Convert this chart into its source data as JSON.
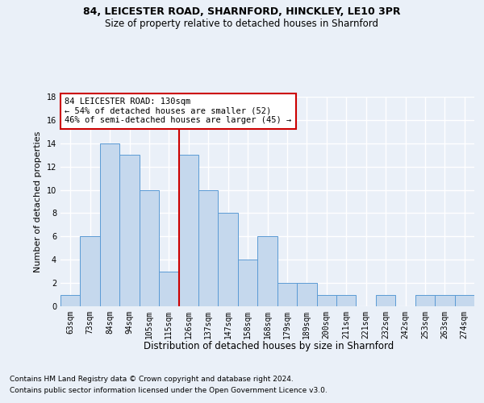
{
  "title1": "84, LEICESTER ROAD, SHARNFORD, HINCKLEY, LE10 3PR",
  "title2": "Size of property relative to detached houses in Sharnford",
  "xlabel": "Distribution of detached houses by size in Sharnford",
  "ylabel": "Number of detached properties",
  "footnote1": "Contains HM Land Registry data © Crown copyright and database right 2024.",
  "footnote2": "Contains public sector information licensed under the Open Government Licence v3.0.",
  "bin_labels": [
    "63sqm",
    "73sqm",
    "84sqm",
    "94sqm",
    "105sqm",
    "115sqm",
    "126sqm",
    "137sqm",
    "147sqm",
    "158sqm",
    "168sqm",
    "179sqm",
    "189sqm",
    "200sqm",
    "211sqm",
    "221sqm",
    "232sqm",
    "242sqm",
    "253sqm",
    "263sqm",
    "274sqm"
  ],
  "values": [
    1,
    6,
    14,
    13,
    10,
    3,
    13,
    10,
    8,
    4,
    6,
    2,
    2,
    1,
    1,
    0,
    1,
    0,
    1,
    1,
    1
  ],
  "bar_color": "#c5d8ed",
  "bar_edge_color": "#5b9bd5",
  "vline_color": "#cc0000",
  "vline_bin_index": 6,
  "annotation_text": "84 LEICESTER ROAD: 130sqm\n← 54% of detached houses are smaller (52)\n46% of semi-detached houses are larger (45) →",
  "annotation_box_color": "#ffffff",
  "annotation_box_edge": "#cc0000",
  "ylim": [
    0,
    18
  ],
  "yticks": [
    0,
    2,
    4,
    6,
    8,
    10,
    12,
    14,
    16,
    18
  ],
  "bg_color": "#eaf0f8",
  "plot_bg_color": "#eaf0f8",
  "grid_color": "#ffffff",
  "title1_fontsize": 9,
  "title2_fontsize": 8.5,
  "ylabel_fontsize": 8,
  "xlabel_fontsize": 8.5,
  "tick_fontsize": 7,
  "footnote_fontsize": 6.5,
  "ann_fontsize": 7.5
}
